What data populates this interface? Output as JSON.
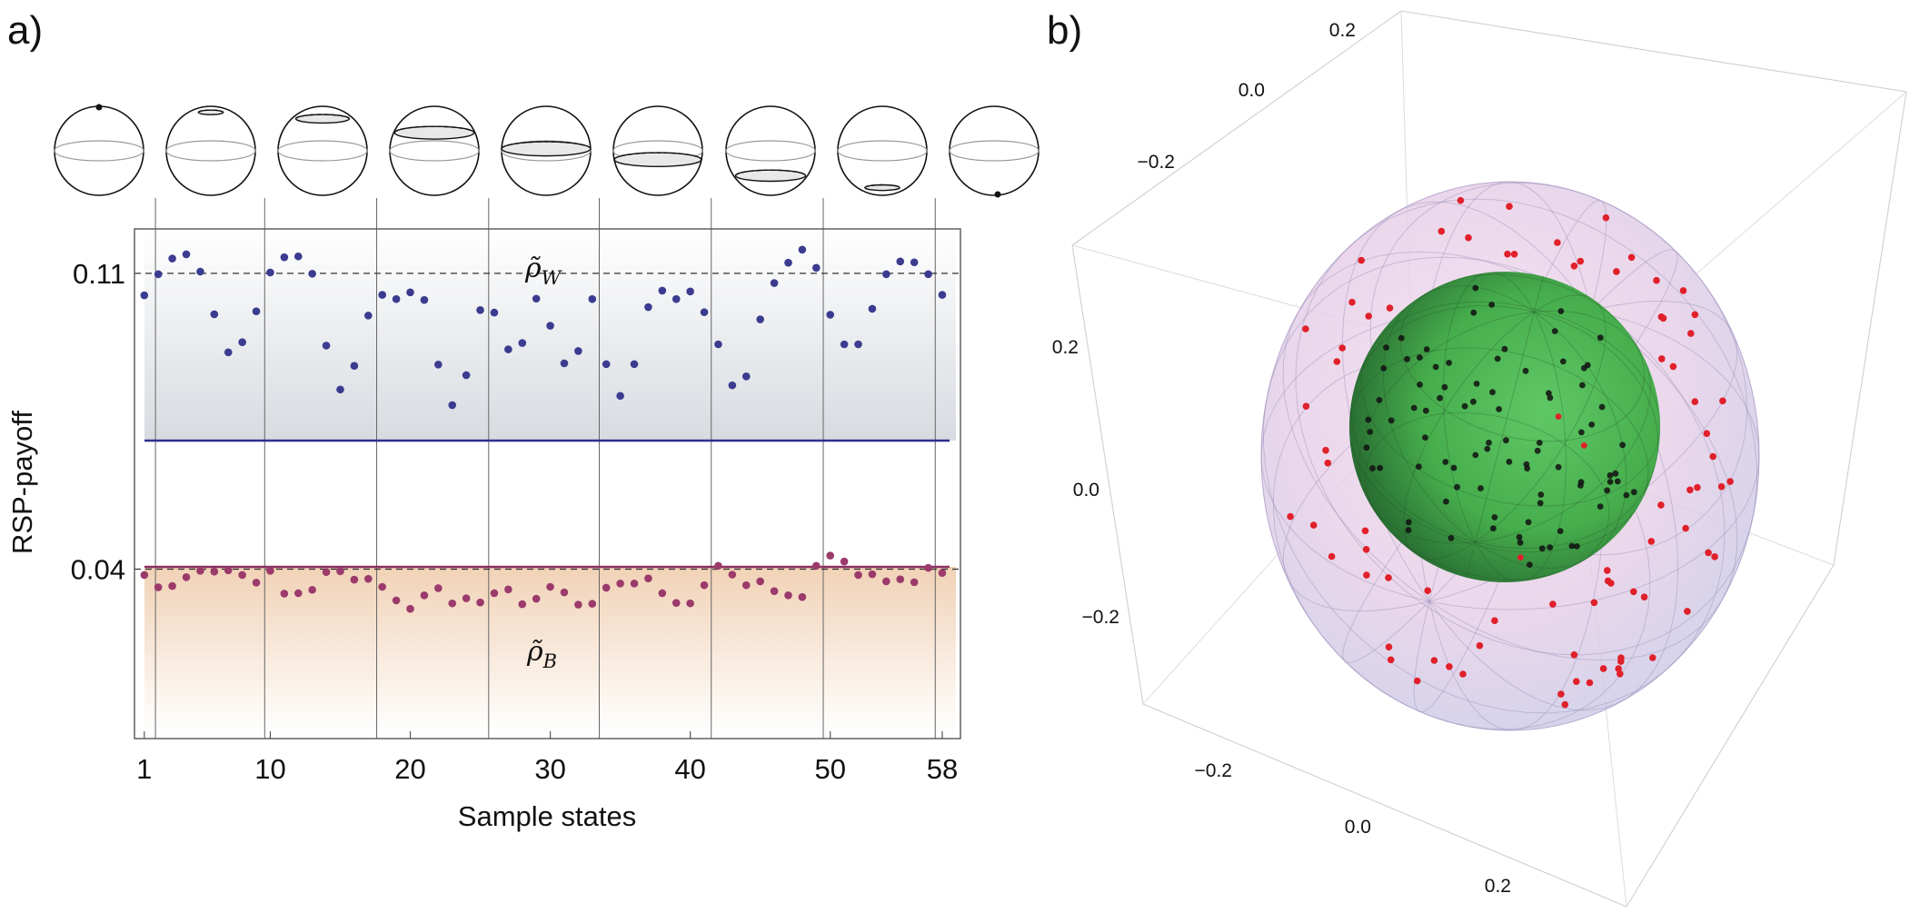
{
  "panel_a": {
    "label": "a)"
  },
  "panel_b": {
    "label": "b)"
  },
  "chart_data": [
    {
      "type": "scatter",
      "xlabel": "Sample states",
      "ylabel": "RSP-payoff",
      "xlim": [
        0.3,
        59.3
      ],
      "ylim": [
        -0.0001,
        0.1205
      ],
      "x_ticks": [
        "1",
        "10",
        "20",
        "30",
        "40",
        "50",
        "58"
      ],
      "y_ticks": [
        "0.04",
        "0.11"
      ],
      "reference_lines": [
        0.04,
        0.11
      ],
      "group_boundaries": [
        1.8,
        9.6,
        17.6,
        25.6,
        33.5,
        41.5,
        49.5,
        57.5
      ],
      "grid": false,
      "region_labels": {
        "upper": "ρ̃",
        "upper_sub": "W",
        "lower": "ρ̃",
        "lower_sub": "B"
      },
      "colors": {
        "upper_series": "#3b3b8f",
        "lower_series": "#9b3a6b",
        "upper_line": "#2e2e8a",
        "lower_line": "#8b2f62"
      },
      "series": [
        {
          "values": [
            0.1048,
            0.1098,
            0.1135,
            0.1145,
            0.1104,
            0.1003,
            0.0913,
            0.0937,
            0.101,
            0.1102,
            0.1138,
            0.114,
            0.1099,
            0.0929,
            0.0825,
            0.0881,
            0.1,
            0.1049,
            0.1039,
            0.1055,
            0.1037,
            0.0884,
            0.0788,
            0.0859,
            0.1013,
            0.1007,
            0.092,
            0.0935,
            0.104,
            0.0976,
            0.0887,
            0.0916,
            0.1039,
            0.0885,
            0.081,
            0.0885,
            0.102,
            0.1059,
            0.1039,
            0.1057,
            0.1008,
            0.0932,
            0.0835,
            0.0856,
            0.0991,
            0.1077,
            0.1125,
            0.1156,
            0.1113,
            0.1002,
            0.0932,
            0.0932,
            0.1016,
            0.1098,
            0.1128,
            0.1126,
            0.1098,
            0.1049
          ]
        },
        {
          "values": [
            0.0386,
            0.0357,
            0.036,
            0.0381,
            0.0396,
            0.0394,
            0.0397,
            0.0386,
            0.0368,
            0.0396,
            0.0342,
            0.0343,
            0.0351,
            0.0393,
            0.0395,
            0.0375,
            0.0377,
            0.0358,
            0.0326,
            0.0306,
            0.0338,
            0.0355,
            0.0319,
            0.0331,
            0.0321,
            0.0343,
            0.0352,
            0.0317,
            0.033,
            0.0358,
            0.0345,
            0.0316,
            0.0318,
            0.0356,
            0.0366,
            0.0366,
            0.0378,
            0.0343,
            0.032,
            0.0319,
            0.0362,
            0.0408,
            0.0387,
            0.0362,
            0.0371,
            0.0348,
            0.0338,
            0.0334,
            0.0408,
            0.0432,
            0.0418,
            0.0386,
            0.0388,
            0.0371,
            0.0376,
            0.0369,
            0.0403,
            0.0391
          ]
        }
      ]
    },
    {
      "type": "scatter",
      "projection": "3d",
      "x_ticks": [
        "−0.2",
        "0.0",
        "0.2"
      ],
      "y_ticks": [
        "−0.2",
        "0.0",
        "0.2"
      ],
      "z_ticks": [
        "0.2",
        "0.0",
        "−0.2"
      ],
      "grid": false,
      "colors": {
        "inner_sphere": "#3fae46",
        "outer_sphere": "#d9c4e6",
        "outer_points": "#e0202a",
        "inner_points": "#111111"
      }
    }
  ]
}
